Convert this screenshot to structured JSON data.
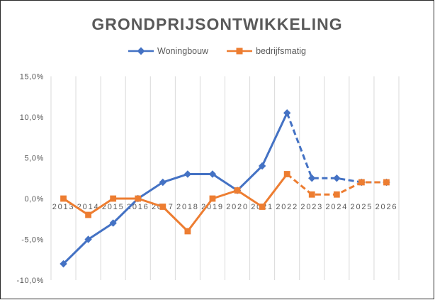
{
  "title": "GRONDPRIJSONTWIKKELING",
  "colors": {
    "title_text": "#595959",
    "axis_labels": "#595959",
    "gridline": "#D9D9D9",
    "frame_border": "#2b2b2b",
    "background": "#FFFFFF",
    "series_blue": "#4472C4",
    "series_orange": "#ED7D31"
  },
  "chart_data": {
    "type": "line",
    "title": "GRONDPRIJSONTWIKKELING",
    "categories": [
      "2013",
      "2014",
      "2015",
      "2016",
      "2017",
      "2018",
      "2019",
      "2020",
      "2021",
      "2022",
      "2023",
      "2024",
      "2025",
      "2026"
    ],
    "series": [
      {
        "name": "Woningbouw",
        "color": "#4472C4",
        "marker": "diamond",
        "dashed_from_index": 9,
        "values": [
          -8,
          -5,
          -3,
          0,
          2,
          3,
          3,
          1,
          4,
          10.5,
          2.5,
          2.5,
          2,
          2
        ]
      },
      {
        "name": "bedrijfsmatig",
        "color": "#ED7D31",
        "marker": "square",
        "dashed_from_index": 9,
        "values": [
          0,
          -2,
          0,
          0,
          -1,
          -4,
          0,
          1,
          -1,
          3,
          0.5,
          0.5,
          2,
          2
        ]
      }
    ],
    "y_ticks": [
      {
        "label": "15,0%",
        "value": 15
      },
      {
        "label": "10,0%",
        "value": 10
      },
      {
        "label": "5,0%",
        "value": 5
      },
      {
        "label": "0,0%",
        "value": 0
      },
      {
        "label": "-5,0%",
        "value": -5
      },
      {
        "label": "-10,0%",
        "value": -10
      }
    ],
    "ylim": [
      -10,
      15
    ],
    "xlabel": "",
    "ylabel": "",
    "grid": "vertical-only",
    "legend_position": "top",
    "number_format": "percent-comma-decimal"
  }
}
